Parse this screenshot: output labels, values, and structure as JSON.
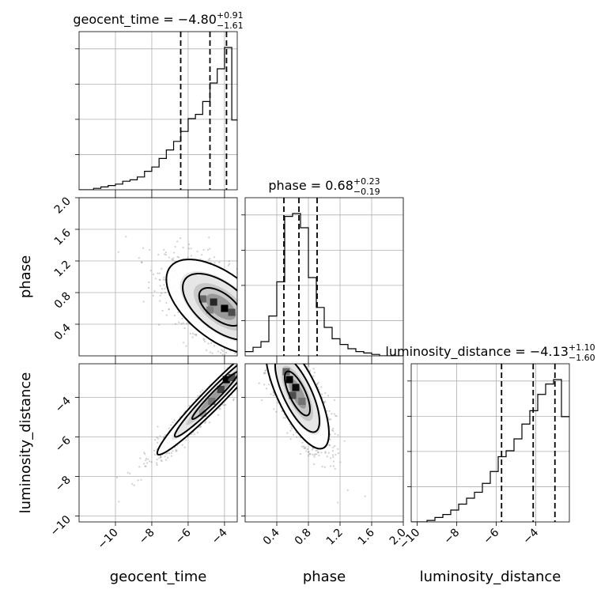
{
  "chart_data": {
    "type": "corner",
    "parameters": [
      "geocent_time",
      "phase",
      "luminosity_distance"
    ],
    "axes": {
      "geocent_time": {
        "range": [
          -12,
          -3.3
        ],
        "ticks": [
          -10,
          -8,
          -6,
          -4
        ],
        "tick_labels": [
          "−10",
          "−8",
          "−6",
          "−4"
        ],
        "label": "geocent_time"
      },
      "phase": {
        "range": [
          0.0,
          2.0
        ],
        "ticks": [
          0.4,
          0.8,
          1.2,
          1.6,
          2.0
        ],
        "tick_labels": [
          "0.4",
          "0.8",
          "1.2",
          "1.6",
          "2.0"
        ],
        "label": "phase"
      },
      "luminosity_distance": {
        "range": [
          -10.3,
          -2.3
        ],
        "ticks": [
          -10,
          -8,
          -6,
          -4
        ],
        "tick_labels": [
          "−10",
          "−8",
          "−6",
          "−4"
        ],
        "label": "luminosity_distance"
      }
    },
    "titles": {
      "geocent_time": {
        "text": "geocent_time = −4.80",
        "upper": "+0.91",
        "lower": "−1.61"
      },
      "phase": {
        "text": "phase = 0.68",
        "upper": "+0.23",
        "lower": "−0.19"
      },
      "luminosity_distance": {
        "text": "luminosity_distance = −4.13",
        "upper": "+1.10",
        "lower": "−1.60"
      }
    },
    "marginals": {
      "geocent_time": {
        "bin_edges": [
          -12.0,
          -11.6,
          -11.2,
          -10.8,
          -10.4,
          -10.0,
          -9.6,
          -9.2,
          -8.8,
          -8.4,
          -8.0,
          -7.6,
          -7.2,
          -6.8,
          -6.4,
          -6.0,
          -5.6,
          -5.2,
          -4.8,
          -4.4,
          -4.0,
          -3.6,
          -3.3
        ],
        "counts": [
          0,
          0,
          0.01,
          0.02,
          0.03,
          0.04,
          0.06,
          0.07,
          0.09,
          0.13,
          0.16,
          0.22,
          0.28,
          0.34,
          0.41,
          0.5,
          0.53,
          0.62,
          0.75,
          0.85,
          1.0,
          0.49
        ],
        "quantiles": [
          -6.41,
          -4.8,
          -3.89
        ]
      },
      "phase": {
        "bin_edges": [
          0.0,
          0.1,
          0.2,
          0.3,
          0.4,
          0.5,
          0.6,
          0.7,
          0.8,
          0.9,
          1.0,
          1.1,
          1.2,
          1.3,
          1.4,
          1.5,
          1.6,
          1.7,
          1.8,
          1.9,
          2.0
        ],
        "counts": [
          0.03,
          0.06,
          0.1,
          0.28,
          0.52,
          0.98,
          1.0,
          0.9,
          0.55,
          0.34,
          0.2,
          0.12,
          0.08,
          0.05,
          0.03,
          0.02,
          0.01,
          0.0,
          0.0,
          0.0
        ],
        "quantiles": [
          0.49,
          0.68,
          0.91
        ]
      },
      "luminosity_distance": {
        "bin_edges": [
          -10.3,
          -9.9,
          -9.5,
          -9.1,
          -8.7,
          -8.3,
          -7.9,
          -7.5,
          -7.1,
          -6.7,
          -6.3,
          -5.9,
          -5.5,
          -5.1,
          -4.7,
          -4.3,
          -3.9,
          -3.5,
          -3.1,
          -2.7,
          -2.3
        ],
        "counts": [
          0.0,
          0.0,
          0.01,
          0.03,
          0.05,
          0.08,
          0.12,
          0.16,
          0.2,
          0.26,
          0.34,
          0.44,
          0.48,
          0.56,
          0.66,
          0.75,
          0.86,
          0.93,
          0.96,
          0.71
        ],
        "quantiles": [
          -5.73,
          -4.13,
          -3.03
        ]
      }
    },
    "joint": [
      {
        "x": "geocent_time",
        "y": "phase",
        "center": [
          -4.2,
          0.62
        ],
        "sigma": [
          1.5,
          0.3
        ],
        "correlation": -0.58,
        "peak_cells": [
          [
            -4.6,
            0.68,
            0.85
          ],
          [
            -4.0,
            0.6,
            1.0
          ],
          [
            -5.2,
            0.72,
            0.6
          ],
          [
            -3.6,
            0.55,
            0.7
          ],
          [
            -4.8,
            0.58,
            0.5
          ]
        ]
      },
      {
        "x": "geocent_time",
        "y": "luminosity_distance",
        "center": [
          -4.5,
          -3.9
        ],
        "sigma": [
          1.6,
          1.5
        ],
        "correlation": 0.97,
        "peak_cells": [
          [
            -3.9,
            -3.1,
            1.0
          ],
          [
            -4.2,
            -3.6,
            0.75
          ],
          [
            -4.7,
            -4.2,
            0.55
          ],
          [
            -5.2,
            -4.8,
            0.4
          ],
          [
            -3.6,
            -3.0,
            0.7
          ]
        ]
      },
      {
        "x": "phase",
        "y": "luminosity_distance",
        "center": [
          0.66,
          -3.8
        ],
        "sigma": [
          0.2,
          1.4
        ],
        "correlation": -0.72,
        "peak_cells": [
          [
            0.56,
            -3.1,
            1.0
          ],
          [
            0.64,
            -3.5,
            0.95
          ],
          [
            0.52,
            -2.7,
            0.6
          ],
          [
            0.72,
            -4.2,
            0.55
          ],
          [
            0.6,
            -3.9,
            0.7
          ]
        ]
      }
    ],
    "grid": true
  }
}
